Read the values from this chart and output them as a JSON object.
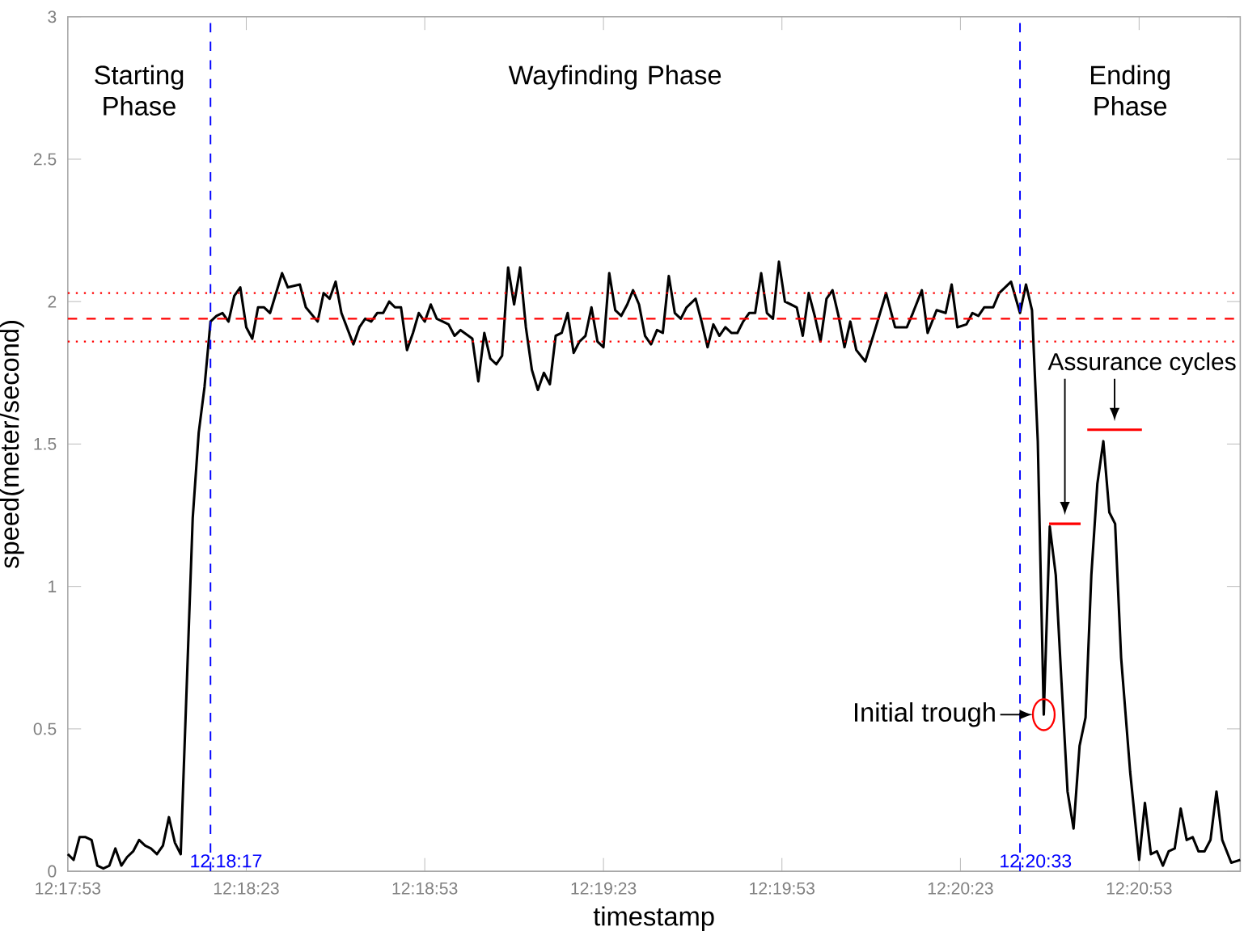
{
  "chart_data": {
    "type": "line",
    "xlabel": "timestamp",
    "ylabel": "speed(meter/second)",
    "xlim": [
      12.29806,
      12.35278
    ],
    "ylim": [
      0,
      3
    ],
    "xticks": [
      {
        "value": 12.29806,
        "label": "12:17:53"
      },
      {
        "value": 12.30639,
        "label": "12:18:23"
      },
      {
        "value": 12.31472,
        "label": "12:18:53"
      },
      {
        "value": 12.32306,
        "label": "12:19:23"
      },
      {
        "value": 12.33139,
        "label": "12:19:53"
      },
      {
        "value": 12.33972,
        "label": "12:20:23"
      },
      {
        "value": 12.34806,
        "label": "12:20:53"
      }
    ],
    "yticks": [
      0,
      0.5,
      1,
      1.5,
      2,
      2.5,
      3
    ],
    "marker": "none",
    "line_style": "solid",
    "series": [
      {
        "color": "#000000",
        "x": [
          12.29806,
          12.29833,
          12.29861,
          12.29889,
          12.29917,
          12.29944,
          12.29972,
          12.3,
          12.30028,
          12.30056,
          12.30083,
          12.30111,
          12.30139,
          12.30167,
          12.30194,
          12.30222,
          12.3025,
          12.30278,
          12.30306,
          12.30333,
          12.30389,
          12.30417,
          12.30444,
          12.30472,
          12.305,
          12.30528,
          12.30556,
          12.30583,
          12.30611,
          12.30639,
          12.30667,
          12.30694,
          12.30722,
          12.3075,
          12.30806,
          12.30833,
          12.30889,
          12.30917,
          12.30972,
          12.31,
          12.31028,
          12.31056,
          12.31083,
          12.31139,
          12.31167,
          12.31194,
          12.31222,
          12.3125,
          12.31278,
          12.31306,
          12.31333,
          12.31361,
          12.31389,
          12.31417,
          12.31444,
          12.31472,
          12.315,
          12.31528,
          12.31556,
          12.31583,
          12.31611,
          12.31639,
          12.31694,
          12.31722,
          12.3175,
          12.31778,
          12.31806,
          12.31833,
          12.31861,
          12.31889,
          12.31917,
          12.31944,
          12.31972,
          12.32,
          12.32028,
          12.32056,
          12.32083,
          12.32111,
          12.32139,
          12.32167,
          12.32194,
          12.32222,
          12.3225,
          12.32278,
          12.32306,
          12.32333,
          12.32361,
          12.32389,
          12.32417,
          12.32444,
          12.32472,
          12.325,
          12.32528,
          12.32556,
          12.32583,
          12.32611,
          12.32639,
          12.32667,
          12.32694,
          12.32736,
          12.32764,
          12.32792,
          12.32819,
          12.32847,
          12.32875,
          12.32903,
          12.32931,
          12.32958,
          12.32986,
          12.33014,
          12.33042,
          12.33069,
          12.33097,
          12.33125,
          12.33153,
          12.33181,
          12.33208,
          12.33236,
          12.33264,
          12.33292,
          12.33319,
          12.33347,
          12.33375,
          12.33403,
          12.33431,
          12.33458,
          12.33486,
          12.33528,
          12.33569,
          12.33625,
          12.33667,
          12.33722,
          12.3375,
          12.33792,
          12.33819,
          12.33861,
          12.33903,
          12.33931,
          12.33958,
          12.34,
          12.34028,
          12.34056,
          12.34083,
          12.34125,
          12.34153,
          12.34208,
          12.3425,
          12.34278,
          12.34306,
          12.34333,
          12.34361,
          12.34389,
          12.34417,
          12.34444,
          12.34472,
          12.345,
          12.34528,
          12.34556,
          12.34583,
          12.34611,
          12.34639,
          12.34667,
          12.34694,
          12.34722,
          12.34764,
          12.34806,
          12.34833,
          12.34861,
          12.34889,
          12.34917,
          12.34944,
          12.34972,
          12.35,
          12.35028,
          12.35056,
          12.35083,
          12.35111,
          12.35139,
          12.35167,
          12.35194,
          12.35236,
          12.35278
        ],
        "values": [
          0.06,
          0.04,
          0.12,
          0.12,
          0.11,
          0.02,
          0.01,
          0.02,
          0.08,
          0.02,
          0.05,
          0.07,
          0.11,
          0.09,
          0.08,
          0.06,
          0.09,
          0.19,
          0.1,
          0.06,
          1.24,
          1.54,
          1.7,
          1.93,
          1.95,
          1.96,
          1.93,
          2.02,
          2.05,
          1.91,
          1.87,
          1.98,
          1.98,
          1.96,
          2.1,
          2.05,
          2.06,
          1.98,
          1.93,
          2.03,
          2.01,
          2.07,
          1.96,
          1.85,
          1.91,
          1.94,
          1.93,
          1.96,
          1.96,
          2.0,
          1.98,
          1.98,
          1.83,
          1.89,
          1.96,
          1.93,
          1.99,
          1.94,
          1.93,
          1.92,
          1.88,
          1.9,
          1.87,
          1.72,
          1.89,
          1.8,
          1.78,
          1.81,
          2.12,
          1.99,
          2.12,
          1.91,
          1.76,
          1.69,
          1.75,
          1.71,
          1.88,
          1.89,
          1.96,
          1.82,
          1.86,
          1.88,
          1.98,
          1.86,
          1.84,
          2.1,
          1.97,
          1.95,
          1.99,
          2.04,
          1.99,
          1.88,
          1.85,
          1.9,
          1.89,
          2.09,
          1.96,
          1.94,
          1.98,
          2.01,
          1.93,
          1.84,
          1.92,
          1.88,
          1.91,
          1.89,
          1.89,
          1.93,
          1.96,
          1.96,
          2.1,
          1.96,
          1.94,
          2.14,
          2.0,
          1.99,
          1.98,
          1.88,
          2.03,
          1.95,
          1.86,
          2.01,
          2.04,
          1.95,
          1.84,
          1.93,
          1.83,
          1.79,
          1.89,
          2.03,
          1.91,
          1.91,
          1.96,
          2.04,
          1.89,
          1.97,
          1.96,
          2.06,
          1.91,
          1.92,
          1.96,
          1.95,
          1.98,
          1.98,
          2.03,
          2.07,
          1.96,
          2.06,
          1.97,
          1.51,
          0.55,
          1.21,
          1.04,
          0.66,
          0.28,
          0.15,
          0.44,
          0.54,
          1.04,
          1.36,
          1.51,
          1.26,
          1.22,
          0.75,
          0.35,
          0.04,
          0.24,
          0.06,
          0.07,
          0.02,
          0.07,
          0.08,
          0.22,
          0.11,
          0.12,
          0.07,
          0.07,
          0.11,
          0.28,
          0.11,
          0.03,
          0.04
        ]
      },
      {
        "type": "line",
        "color": "#ff0000",
        "x": [
          12.34386,
          12.34533
        ],
        "values": [
          1.22,
          1.22
        ]
      },
      {
        "type": "line",
        "color": "#ff0000",
        "x": [
          12.34564,
          12.34819
        ],
        "values": [
          1.55,
          1.55
        ]
      }
    ],
    "ref_lines": [
      {
        "axis": "x",
        "value": 12.30472,
        "label": "12:18:17",
        "color": "#0000ff",
        "line_style": "dashed"
      },
      {
        "axis": "x",
        "value": 12.3425,
        "label": "12:20:33",
        "color": "#0000ff",
        "line_style": "dashed"
      },
      {
        "axis": "y",
        "value": 1.94,
        "color": "#ff0000",
        "line_style": "dashed"
      },
      {
        "axis": "y",
        "value": 2.03,
        "color": "#ff0000",
        "line_style": "dotted"
      },
      {
        "axis": "y",
        "value": 1.86,
        "color": "#ff0000",
        "line_style": "dotted"
      }
    ],
    "annotations": [
      "Starting Phase",
      "Wayfinding Phase",
      "Ending Phase",
      {
        "text": "Assurance cycles",
        "x": 12.34692,
        "y": 1.55
      },
      {
        "text": "Initial trough",
        "x": 12.34361,
        "y": 0.55
      }
    ]
  }
}
